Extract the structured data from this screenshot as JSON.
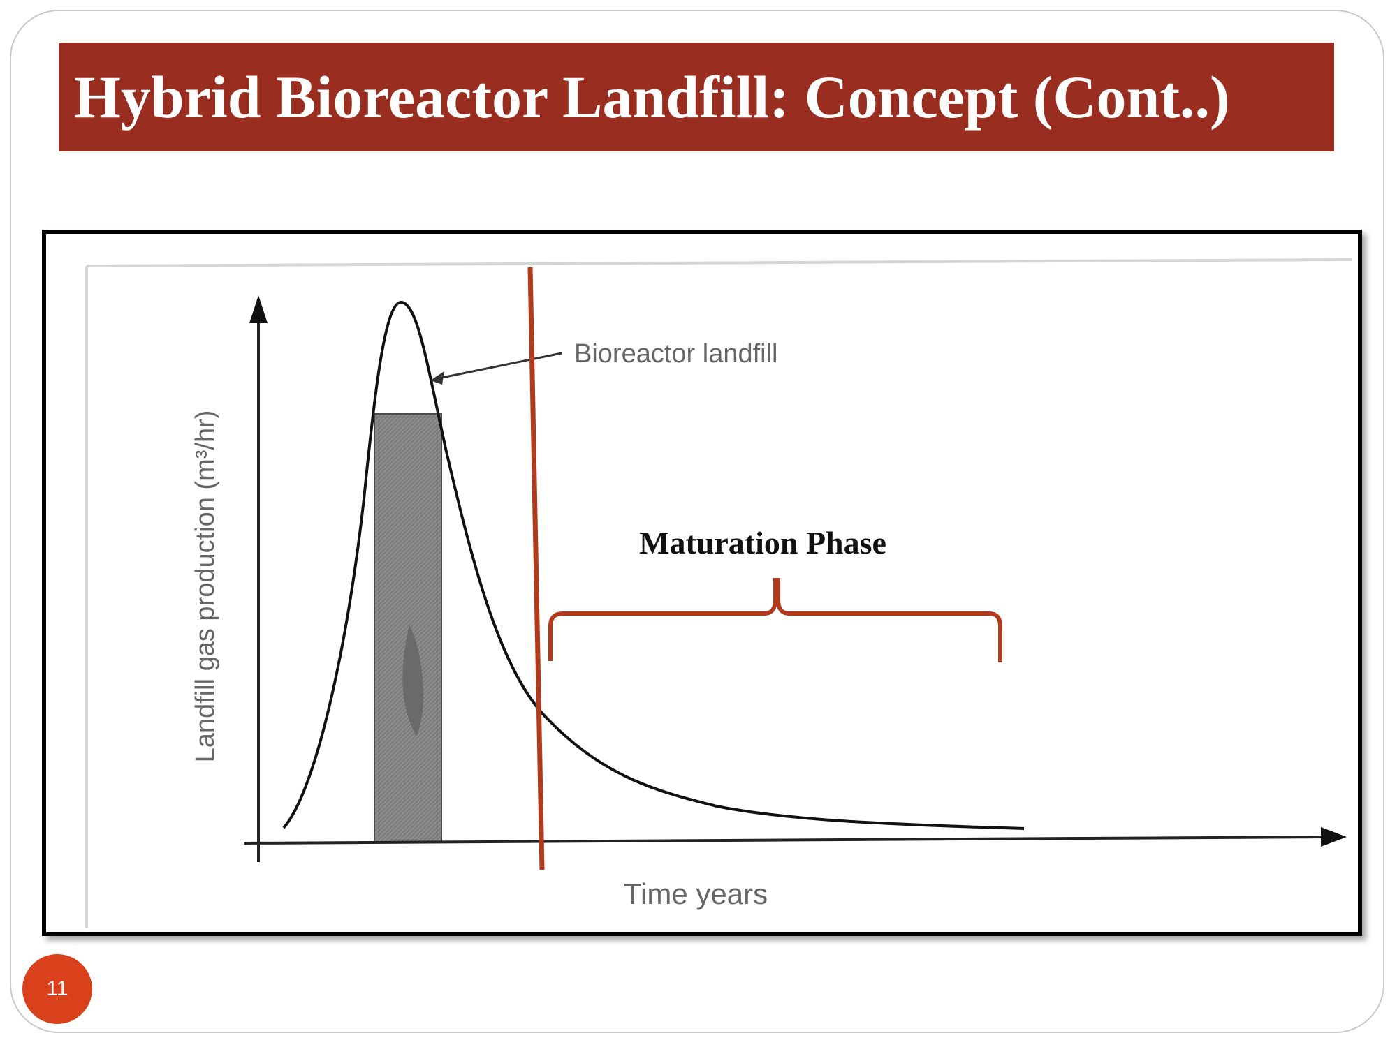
{
  "slide": {
    "title": "Hybrid Bioreactor Landfill: Concept (Cont..)",
    "number": "11",
    "accent_color": "#992d20",
    "number_badge_color": "#d9401c"
  },
  "figure": {
    "ylabel": "Landfill gas production (m³/hr)",
    "xlabel": "Time years",
    "curve_annotation": "Bioreactor landfill",
    "phase_label": "Maturation Phase",
    "divider_color": "#b03a1c"
  }
}
